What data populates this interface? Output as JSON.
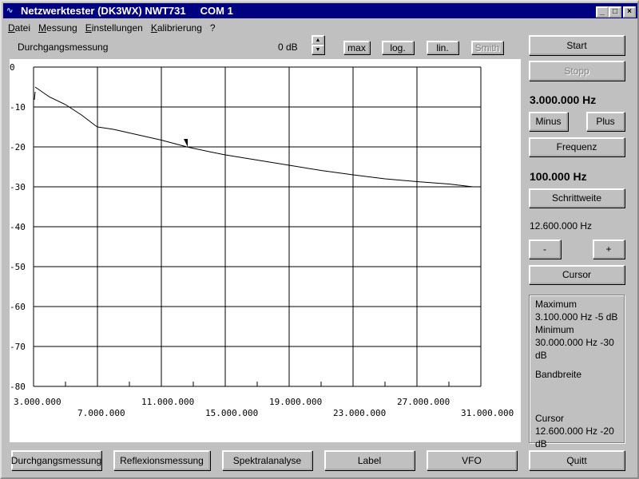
{
  "window": {
    "title": "Netzwerktester (DK3WX) NWT731     COM 1",
    "minimize": "_",
    "maximize": "□",
    "close": "×"
  },
  "menu": [
    "Datei",
    "Messung",
    "Einstellungen",
    "Kalibrierung",
    "?"
  ],
  "toolbar": {
    "mode": "Durchgangsmessung",
    "offset": "0 dB",
    "max": "max",
    "log": "log.",
    "lin": "lin.",
    "smith": "Smith"
  },
  "side": {
    "start": "Start",
    "stopp": "Stopp",
    "start_freq": "3.000.000 Hz",
    "minus": "Minus",
    "plus": "Plus",
    "frequenz": "Frequenz",
    "step": "100.000 Hz",
    "schrittweite": "Schrittweite",
    "cursor_freq": "12.600.000 Hz",
    "cursor_minus": "-",
    "cursor_plus": "+",
    "cursor": "Cursor"
  },
  "info": {
    "max_label": "Maximum",
    "max_value": "3.100.000 Hz -5 dB",
    "min_label": "Minimum",
    "min_value": "30.000.000 Hz -30 dB",
    "bw_label": "Bandbreite",
    "cursor_label": "Cursor",
    "cursor_value": "12.600.000 Hz -20 dB"
  },
  "bottom": [
    "Durchgangsmessung",
    "Reflexionsmessung",
    "Spektralanalyse",
    "Label",
    "VFO",
    "Quitt"
  ],
  "chart_data": {
    "type": "line",
    "xlim": [
      3000000,
      31000000
    ],
    "ylim": [
      -80,
      0
    ],
    "grid": true,
    "yticks": [
      "0",
      "-10",
      "-20",
      "-30",
      "-40",
      "-50",
      "-60",
      "-70",
      "-80"
    ],
    "xticks": [
      "3.000.000",
      "7.000.000",
      "11.000.000",
      "15.000.000",
      "19.000.000",
      "23.000.000",
      "27.000.000",
      "31.000.000"
    ],
    "x": [
      3100000,
      4000000,
      5000000,
      6000000,
      6850000,
      7000000,
      8000000,
      9000000,
      10000000,
      11000000,
      12600000,
      14000000,
      15000000,
      17000000,
      19000000,
      21000000,
      23000000,
      25000000,
      27000000,
      29000000,
      30500000
    ],
    "y": [
      -5,
      -7.5,
      -9.4,
      -12,
      -14.6,
      -15,
      -15.6,
      -16.5,
      -17.4,
      -18.3,
      -20,
      -21.2,
      -22,
      -23.3,
      -24.6,
      -25.9,
      -27,
      -28,
      -28.7,
      -29.3,
      -30
    ],
    "cursor_x": 12600000,
    "color": "#000000"
  }
}
